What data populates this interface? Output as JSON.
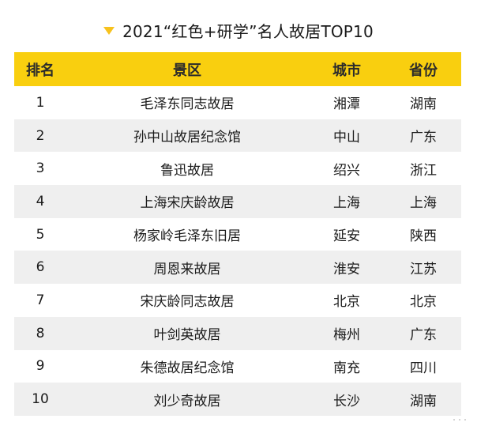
{
  "title": "2021“红色+研学”名人故居TOP10",
  "colors": {
    "accent": "#f9cf0f",
    "alt_row": "#efefef"
  },
  "table": {
    "headers": [
      "排名",
      "景区",
      "城市",
      "省份"
    ],
    "rows": [
      {
        "rank": "1",
        "spot": "毛泽东同志故居",
        "city": "湘潭",
        "province": "湖南"
      },
      {
        "rank": "2",
        "spot": "孙中山故居纪念馆",
        "city": "中山",
        "province": "广东"
      },
      {
        "rank": "3",
        "spot": "鲁迅故居",
        "city": "绍兴",
        "province": "浙江"
      },
      {
        "rank": "4",
        "spot": "上海宋庆龄故居",
        "city": "上海",
        "province": "上海"
      },
      {
        "rank": "5",
        "spot": "杨家岭毛泽东旧居",
        "city": "延安",
        "province": "陕西"
      },
      {
        "rank": "6",
        "spot": "周恩来故居",
        "city": "淮安",
        "province": "江苏"
      },
      {
        "rank": "7",
        "spot": "宋庆龄同志故居",
        "city": "北京",
        "province": "北京"
      },
      {
        "rank": "8",
        "spot": "叶剑英故居",
        "city": "梅州",
        "province": "广东"
      },
      {
        "rank": "9",
        "spot": "朱德故居纪念馆",
        "city": "南充",
        "province": "四川"
      },
      {
        "rank": "10",
        "spot": "刘少奇故居",
        "city": "长沙",
        "province": "湖南"
      }
    ]
  }
}
